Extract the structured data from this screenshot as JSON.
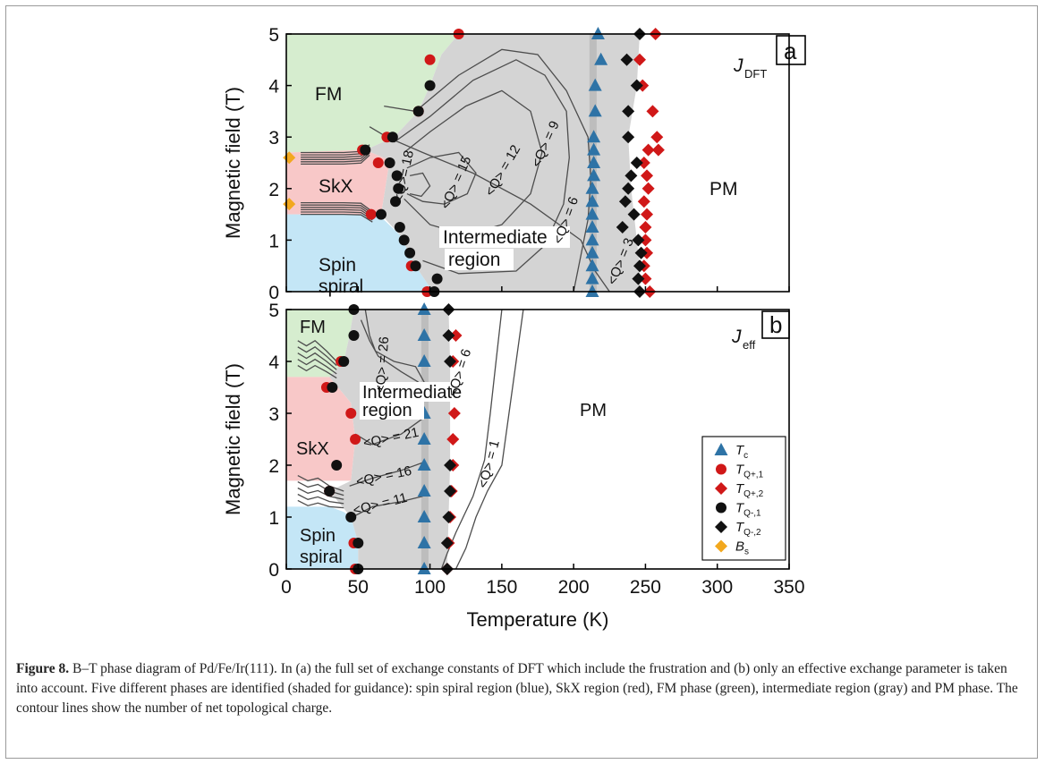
{
  "caption": {
    "label": "Figure 8.",
    "text": "B–T phase diagram of Pd/Fe/Ir(111). In (a) the full set of exchange constants of DFT which include the frustration and (b) only an effective exchange parameter is taken into account. Five different phases are identified (shaded for guidance): spin spiral region (blue), SkX region (red), FM phase (green), intermediate region (gray) and PM phase. The contour lines show the number of net topological charge."
  },
  "colors": {
    "fm": "#d6edcf",
    "skx": "#f8c8c8",
    "spiral": "#c4e6f6",
    "intermediate": "#d4d4d4",
    "tc": "#2e73a6",
    "red": "#d01818",
    "black": "#111111",
    "bs": "#f2a81e"
  },
  "chart_data": [
    {
      "panel": "a",
      "type": "scatter",
      "panel_label": "a",
      "exchange_label": {
        "main": "J",
        "sub": "DFT"
      },
      "ylabel": "Magnetic field (T)",
      "xlabel": "",
      "xlim": [
        0,
        350
      ],
      "ylim": [
        0,
        5
      ],
      "yticks": [
        "0",
        "1",
        "2",
        "3",
        "4",
        "5"
      ],
      "region_labels": [
        "FM",
        "SkX",
        "Spin",
        "spiral",
        "Intermediate",
        "region",
        "PM"
      ],
      "contour_labels": [
        "<Q>= 18",
        "<Q> = 15",
        "<Q> = 12",
        "<Q> = 9",
        "<Q> = 6",
        "<Q> = 3"
      ],
      "series": [
        {
          "name": "Tc",
          "marker": "triangle",
          "points": [
            [
              217,
              5
            ],
            [
              219,
              4.5
            ],
            [
              215,
              4
            ],
            [
              215,
              3.5
            ],
            [
              214,
              3
            ],
            [
              214,
              2.75
            ],
            [
              214,
              2.5
            ],
            [
              214,
              2.25
            ],
            [
              213,
              2
            ],
            [
              213,
              1.75
            ],
            [
              213,
              1.5
            ],
            [
              213,
              1.25
            ],
            [
              213,
              1
            ],
            [
              213,
              0.75
            ],
            [
              213,
              0.5
            ],
            [
              213,
              0.25
            ],
            [
              213,
              0
            ]
          ]
        },
        {
          "name": "TQ+,1",
          "marker": "circle",
          "points": [
            [
              120,
              5
            ],
            [
              100,
              4.5
            ],
            [
              92,
              3.5
            ],
            [
              70,
              3
            ],
            [
              53,
              2.75
            ],
            [
              64,
              2.5
            ],
            [
              59,
              1.5
            ],
            [
              87,
              0.5
            ],
            [
              98,
              0
            ]
          ]
        },
        {
          "name": "TQ+,2",
          "marker": "diamond",
          "points": [
            [
              257,
              5
            ],
            [
              246,
              4.5
            ],
            [
              248,
              4
            ],
            [
              255,
              3.5
            ],
            [
              258,
              3
            ],
            [
              252,
              2.75
            ],
            [
              259,
              2.75
            ],
            [
              249,
              2.5
            ],
            [
              251,
              2.25
            ],
            [
              252,
              2
            ],
            [
              249,
              1.75
            ],
            [
              251,
              1.5
            ],
            [
              250,
              1.25
            ],
            [
              250,
              1
            ],
            [
              251,
              0.75
            ],
            [
              249,
              0.5
            ],
            [
              250,
              0.25
            ],
            [
              253,
              0
            ]
          ]
        },
        {
          "name": "TQ-,1",
          "marker": "circle",
          "points": [
            [
              100,
              4
            ],
            [
              92,
              3.5
            ],
            [
              74,
              3
            ],
            [
              55,
              2.75
            ],
            [
              72,
              2.5
            ],
            [
              77,
              2.25
            ],
            [
              78,
              2
            ],
            [
              76,
              1.75
            ],
            [
              66,
              1.5
            ],
            [
              79,
              1.25
            ],
            [
              82,
              1
            ],
            [
              86,
              0.75
            ],
            [
              90,
              0.5
            ],
            [
              105,
              0.25
            ],
            [
              103,
              0
            ]
          ]
        },
        {
          "name": "TQ-,2",
          "marker": "diamond",
          "points": [
            [
              246,
              5
            ],
            [
              237,
              4.5
            ],
            [
              244,
              4
            ],
            [
              238,
              3.5
            ],
            [
              238,
              3
            ],
            [
              244,
              2.5
            ],
            [
              240,
              2.25
            ],
            [
              238,
              2
            ],
            [
              236,
              1.75
            ],
            [
              242,
              1.5
            ],
            [
              234,
              1.25
            ],
            [
              245,
              1
            ],
            [
              247,
              0.75
            ],
            [
              246,
              0.5
            ],
            [
              245,
              0.25
            ],
            [
              246,
              0
            ]
          ]
        },
        {
          "name": "Bs",
          "marker": "diamond",
          "points": [
            [
              2,
              2.6
            ],
            [
              2,
              1.7
            ]
          ]
        }
      ]
    },
    {
      "panel": "b",
      "type": "scatter",
      "panel_label": "b",
      "exchange_label": {
        "main": "J",
        "sub": "eff"
      },
      "ylabel": "Magnetic field (T)",
      "xlabel": "Temperature (K)",
      "xlim": [
        0,
        350
      ],
      "ylim": [
        0,
        5
      ],
      "xticks": [
        "0",
        "50",
        "100",
        "150",
        "200",
        "250",
        "300",
        "350"
      ],
      "yticks": [
        "0",
        "1",
        "2",
        "3",
        "4",
        "5"
      ],
      "region_labels": [
        "FM",
        "SkX",
        "Spin",
        "spiral",
        "Intermediate",
        "region",
        "PM"
      ],
      "contour_labels": [
        "<Q> = 26",
        "<Q> = 21",
        "<Q> = 16",
        "<Q> = 11",
        "<Q> = 6",
        "<Q> = 1"
      ],
      "legend": {
        "position": "bottom-right",
        "entries": [
          {
            "main": "T",
            "sub": "c"
          },
          {
            "main": "T",
            "sub": "Q+,1"
          },
          {
            "main": "T",
            "sub": "Q+,2"
          },
          {
            "main": "T",
            "sub": "Q-,1"
          },
          {
            "main": "T",
            "sub": "Q-,2"
          },
          {
            "main": "B",
            "sub": "s"
          }
        ]
      },
      "series": [
        {
          "name": "Tc",
          "marker": "triangle",
          "points": [
            [
              96,
              5
            ],
            [
              96,
              4.5
            ],
            [
              96,
              4
            ],
            [
              96,
              3
            ],
            [
              96,
              2.5
            ],
            [
              96,
              2
            ],
            [
              96,
              1.5
            ],
            [
              96,
              1
            ],
            [
              96,
              0.5
            ],
            [
              96,
              0
            ]
          ]
        },
        {
          "name": "TQ+,1",
          "marker": "circle",
          "points": [
            [
              38,
              4
            ],
            [
              28,
              3.5
            ],
            [
              45,
              3
            ],
            [
              48,
              2.5
            ],
            [
              30,
              1.5
            ],
            [
              47,
              0.5
            ],
            [
              48,
              0
            ]
          ]
        },
        {
          "name": "TQ+,2",
          "marker": "diamond",
          "points": [
            [
              118,
              4.5
            ],
            [
              116,
              4
            ],
            [
              117,
              3
            ],
            [
              116,
              2.5
            ],
            [
              116,
              2
            ],
            [
              115,
              1.5
            ],
            [
              114,
              1
            ],
            [
              113,
              0.5
            ],
            [
              112,
              0
            ]
          ]
        },
        {
          "name": "TQ-,1",
          "marker": "circle",
          "points": [
            [
              47,
              5
            ],
            [
              47,
              4.5
            ],
            [
              40,
              4
            ],
            [
              32,
              3.5
            ],
            [
              35,
              2
            ],
            [
              30,
              1.5
            ],
            [
              45,
              1
            ],
            [
              50,
              0.5
            ],
            [
              50,
              0
            ]
          ]
        },
        {
          "name": "TQ-,2",
          "marker": "diamond",
          "points": [
            [
              113,
              5
            ],
            [
              113,
              4.5
            ],
            [
              114,
              4
            ],
            [
              114,
              2
            ],
            [
              114,
              1.5
            ],
            [
              113,
              1
            ],
            [
              112,
              0.5
            ],
            [
              112,
              0
            ]
          ]
        }
      ]
    }
  ]
}
